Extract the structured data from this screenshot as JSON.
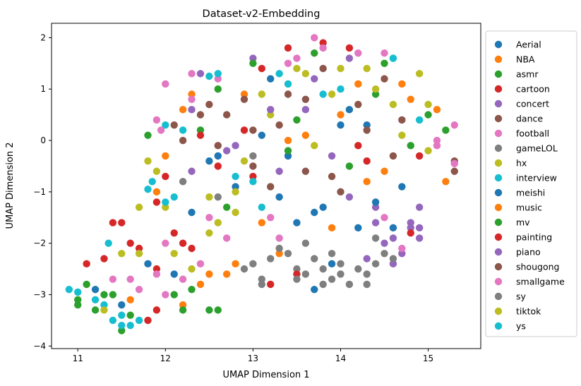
{
  "chart_data": {
    "type": "scatter",
    "title": "Dataset-v2-Embedding",
    "xlabel": "UMAP Dimension 1",
    "ylabel": "UMAP Dimension 2",
    "xlim": [
      10.7,
      15.6
    ],
    "ylim": [
      -4.05,
      2.28
    ],
    "xticks": [
      11,
      12,
      13,
      14,
      15
    ],
    "yticks": [
      -4,
      -3,
      -2,
      -1,
      0,
      1,
      2
    ],
    "grid": false,
    "legend_position": "outside-right",
    "series": [
      {
        "name": "Aerial",
        "color": "#1f77b4",
        "points": [
          [
            11.2,
            -2.9
          ],
          [
            11.5,
            -3.2
          ],
          [
            12.1,
            -2.6
          ],
          [
            12.8,
            -0.9
          ],
          [
            13.4,
            -0.3
          ],
          [
            14.1,
            0.6
          ],
          [
            13.9,
            -2.4
          ],
          [
            14.6,
            -1.7
          ],
          [
            13.2,
            1.2
          ],
          [
            12.5,
            -0.4
          ],
          [
            14.3,
            0.3
          ],
          [
            13.7,
            -1.4
          ]
        ]
      },
      {
        "name": "NBA",
        "color": "#ff7f0e",
        "points": [
          [
            12.4,
            -2.8
          ],
          [
            12.7,
            -2.6
          ],
          [
            11.9,
            -1.0
          ],
          [
            12.3,
            0.9
          ],
          [
            13.1,
            -1.6
          ],
          [
            14.5,
            -0.6
          ],
          [
            14.8,
            0.8
          ],
          [
            15.2,
            -0.8
          ],
          [
            13.6,
            0.1
          ],
          [
            12.0,
            -0.3
          ],
          [
            14.2,
            1.1
          ],
          [
            13.3,
            -2.2
          ]
        ]
      },
      {
        "name": "asmr",
        "color": "#2ca02c",
        "points": [
          [
            11.0,
            -3.1
          ],
          [
            11.2,
            -3.3
          ],
          [
            11.4,
            -3.0
          ],
          [
            11.1,
            -2.8
          ],
          [
            11.6,
            -3.4
          ],
          [
            12.1,
            -3.0
          ],
          [
            12.3,
            -2.9
          ],
          [
            12.5,
            -3.3
          ],
          [
            11.8,
            0.1
          ],
          [
            12.6,
            1.0
          ],
          [
            13.5,
            0.4
          ],
          [
            14.1,
            -0.5
          ],
          [
            15.0,
            0.5
          ],
          [
            14.5,
            1.5
          ]
        ]
      },
      {
        "name": "cartoon",
        "color": "#d62728",
        "points": [
          [
            11.5,
            -1.6
          ],
          [
            11.7,
            -2.1
          ],
          [
            11.9,
            -2.5
          ],
          [
            11.3,
            -2.3
          ],
          [
            11.8,
            -3.5
          ],
          [
            12.2,
            -2.0
          ],
          [
            12.0,
            -0.7
          ],
          [
            12.6,
            -0.5
          ],
          [
            13.1,
            1.4
          ],
          [
            13.8,
            1.9
          ],
          [
            14.2,
            -0.1
          ],
          [
            13.2,
            -2.8
          ],
          [
            14.9,
            -0.3
          ],
          [
            12.9,
            0.2
          ]
        ]
      },
      {
        "name": "concert",
        "color": "#9467bd",
        "points": [
          [
            12.3,
            -0.6
          ],
          [
            12.8,
            -0.1
          ],
          [
            13.3,
            -0.6
          ],
          [
            13.9,
            -0.3
          ],
          [
            14.4,
            -1.3
          ],
          [
            14.8,
            -1.7
          ],
          [
            14.9,
            -1.9
          ],
          [
            14.6,
            -2.4
          ],
          [
            13.0,
            1.6
          ],
          [
            14.1,
            1.6
          ],
          [
            12.4,
            1.3
          ],
          [
            13.6,
            0.6
          ]
        ]
      },
      {
        "name": "dance",
        "color": "#8c564b",
        "points": [
          [
            12.2,
            0.0
          ],
          [
            12.7,
            0.5
          ],
          [
            13.0,
            0.2
          ],
          [
            13.4,
            0.9
          ],
          [
            13.8,
            1.4
          ],
          [
            14.3,
            0.2
          ],
          [
            14.7,
            0.4
          ],
          [
            15.3,
            -0.6
          ],
          [
            13.2,
            -0.9
          ],
          [
            13.6,
            -0.6
          ],
          [
            12.5,
            0.7
          ],
          [
            14.0,
            -1.0
          ]
        ]
      },
      {
        "name": "football",
        "color": "#e377c2",
        "points": [
          [
            11.6,
            -2.7
          ],
          [
            11.9,
            -2.6
          ],
          [
            12.0,
            -2.0
          ],
          [
            12.4,
            -2.4
          ],
          [
            12.0,
            1.1
          ],
          [
            11.9,
            0.4
          ],
          [
            12.3,
            1.3
          ],
          [
            13.5,
            1.6
          ],
          [
            13.7,
            2.0
          ],
          [
            14.2,
            1.7
          ],
          [
            15.1,
            0.0
          ],
          [
            15.3,
            0.3
          ],
          [
            14.5,
            -1.5
          ],
          [
            13.2,
            -1.5
          ],
          [
            12.7,
            -1.9
          ]
        ]
      },
      {
        "name": "gameLOL",
        "color": "#7f7f7f",
        "points": [
          [
            12.9,
            -2.5
          ],
          [
            13.1,
            -2.7
          ],
          [
            13.3,
            -2.1
          ],
          [
            13.5,
            -2.5
          ],
          [
            13.7,
            -2.3
          ],
          [
            13.9,
            -2.7
          ],
          [
            14.1,
            -2.8
          ],
          [
            14.3,
            -2.6
          ],
          [
            14.5,
            -2.2
          ],
          [
            13.6,
            -2.0
          ],
          [
            14.0,
            -2.4
          ],
          [
            13.8,
            -2.8
          ],
          [
            14.4,
            -1.9
          ],
          [
            12.2,
            -0.8
          ],
          [
            13.0,
            -0.3
          ]
        ]
      },
      {
        "name": "hx",
        "color": "#bcbd22",
        "points": [
          [
            11.5,
            -2.2
          ],
          [
            11.7,
            -1.3
          ],
          [
            11.9,
            -0.6
          ],
          [
            12.5,
            -1.1
          ],
          [
            12.6,
            -1.6
          ],
          [
            12.8,
            -1.0
          ],
          [
            13.2,
            0.5
          ],
          [
            13.5,
            1.4
          ],
          [
            14.3,
            1.4
          ],
          [
            14.9,
            1.3
          ],
          [
            15.0,
            -0.2
          ],
          [
            14.6,
            0.7
          ],
          [
            12.1,
            -2.2
          ],
          [
            13.9,
            0.9
          ]
        ]
      },
      {
        "name": "interview",
        "color": "#17becf",
        "points": [
          [
            11.3,
            -3.2
          ],
          [
            11.4,
            -3.5
          ],
          [
            11.5,
            -3.4
          ],
          [
            11.6,
            -3.6
          ],
          [
            11.8,
            -0.95
          ],
          [
            12.1,
            -1.1
          ],
          [
            12.0,
            0.3
          ],
          [
            12.5,
            1.25
          ],
          [
            13.4,
            1.1
          ],
          [
            13.8,
            0.9
          ],
          [
            14.6,
            1.6
          ],
          [
            14.9,
            0.4
          ],
          [
            12.8,
            -0.7
          ],
          [
            13.1,
            -1.3
          ]
        ]
      },
      {
        "name": "meishi",
        "color": "#1f77b4",
        "points": [
          [
            11.8,
            -2.4
          ],
          [
            12.3,
            -1.4
          ],
          [
            12.6,
            -0.3
          ],
          [
            13.3,
            -1.1
          ],
          [
            13.5,
            -1.6
          ],
          [
            13.8,
            -1.3
          ],
          [
            14.2,
            -1.7
          ],
          [
            14.4,
            -1.2
          ],
          [
            14.7,
            -0.9
          ],
          [
            13.7,
            -2.9
          ],
          [
            14.0,
            0.3
          ],
          [
            13.1,
            0.1
          ]
        ]
      },
      {
        "name": "music",
        "color": "#ff7f0e",
        "points": [
          [
            11.6,
            -3.1
          ],
          [
            12.2,
            -3.2
          ],
          [
            12.5,
            -2.6
          ],
          [
            12.8,
            -2.4
          ],
          [
            12.2,
            0.6
          ],
          [
            12.9,
            0.9
          ],
          [
            13.4,
            0.0
          ],
          [
            14.0,
            0.5
          ],
          [
            14.7,
            1.1
          ],
          [
            15.1,
            0.6
          ],
          [
            14.3,
            -0.8
          ],
          [
            13.9,
            -1.7
          ]
        ]
      },
      {
        "name": "mv",
        "color": "#2ca02c",
        "points": [
          [
            11.0,
            -3.2
          ],
          [
            11.3,
            -3.0
          ],
          [
            11.5,
            -3.7
          ],
          [
            12.2,
            -3.3
          ],
          [
            12.6,
            -3.3
          ],
          [
            12.4,
            0.2
          ],
          [
            13.0,
            1.5
          ],
          [
            13.7,
            1.7
          ],
          [
            14.4,
            0.9
          ],
          [
            14.8,
            -0.1
          ],
          [
            15.2,
            0.2
          ],
          [
            13.4,
            -0.2
          ],
          [
            12.7,
            -1.3
          ]
        ]
      },
      {
        "name": "painting",
        "color": "#d62728",
        "points": [
          [
            11.1,
            -2.4
          ],
          [
            11.4,
            -1.6
          ],
          [
            11.6,
            -2.0
          ],
          [
            11.9,
            -3.3
          ],
          [
            12.1,
            -1.8
          ],
          [
            12.3,
            -2.1
          ],
          [
            11.9,
            -1.2
          ],
          [
            12.4,
            0.1
          ],
          [
            13.0,
            -0.7
          ],
          [
            13.4,
            1.8
          ],
          [
            14.1,
            1.8
          ],
          [
            14.3,
            -0.4
          ],
          [
            14.8,
            -1.8
          ],
          [
            13.5,
            -2.6
          ]
        ]
      },
      {
        "name": "piano",
        "color": "#9467bd",
        "points": [
          [
            14.4,
            -1.6
          ],
          [
            14.6,
            -1.9
          ],
          [
            14.7,
            -2.2
          ],
          [
            14.8,
            -1.6
          ],
          [
            14.9,
            -1.7
          ],
          [
            14.5,
            -2.0
          ],
          [
            14.3,
            -2.3
          ],
          [
            14.1,
            -1.1
          ],
          [
            12.7,
            -0.2
          ],
          [
            13.2,
            0.6
          ],
          [
            13.7,
            1.2
          ],
          [
            12.3,
            0.6
          ],
          [
            14.9,
            -1.3
          ]
        ]
      },
      {
        "name": "shougong",
        "color": "#8c564b",
        "points": [
          [
            12.1,
            0.3
          ],
          [
            12.6,
            -0.1
          ],
          [
            12.9,
            0.8
          ],
          [
            13.3,
            0.3
          ],
          [
            13.6,
            0.8
          ],
          [
            14.2,
            0.7
          ],
          [
            14.6,
            -0.3
          ],
          [
            15.3,
            -0.4
          ],
          [
            13.0,
            -0.5
          ],
          [
            13.9,
            -0.7
          ],
          [
            12.4,
            0.5
          ],
          [
            14.5,
            1.2
          ]
        ]
      },
      {
        "name": "smallgame",
        "color": "#e377c2",
        "points": [
          [
            11.4,
            -2.7
          ],
          [
            11.7,
            -2.9
          ],
          [
            12.0,
            -3.0
          ],
          [
            12.2,
            -2.7
          ],
          [
            11.95,
            0.2
          ],
          [
            12.3,
            0.8
          ],
          [
            12.6,
            1.2
          ],
          [
            13.4,
            1.5
          ],
          [
            13.8,
            1.8
          ],
          [
            14.5,
            1.7
          ],
          [
            15.1,
            -0.1
          ],
          [
            15.3,
            -0.45
          ],
          [
            14.7,
            -2.1
          ],
          [
            13.3,
            -1.9
          ],
          [
            12.5,
            -1.5
          ]
        ]
      },
      {
        "name": "sy",
        "color": "#7f7f7f",
        "points": [
          [
            13.0,
            -2.4
          ],
          [
            13.2,
            -2.3
          ],
          [
            13.4,
            -2.2
          ],
          [
            13.6,
            -2.6
          ],
          [
            13.8,
            -2.5
          ],
          [
            14.0,
            -2.6
          ],
          [
            14.2,
            -2.5
          ],
          [
            14.4,
            -2.4
          ],
          [
            14.6,
            -2.3
          ],
          [
            13.5,
            -2.7
          ],
          [
            13.9,
            -2.2
          ],
          [
            14.3,
            -2.8
          ],
          [
            13.1,
            -2.8
          ],
          [
            12.6,
            -1.1
          ]
        ]
      },
      {
        "name": "tiktok",
        "color": "#bcbd22",
        "points": [
          [
            11.3,
            -3.3
          ],
          [
            11.7,
            -2.2
          ],
          [
            11.8,
            -0.4
          ],
          [
            12.0,
            -1.3
          ],
          [
            12.5,
            -1.8
          ],
          [
            12.8,
            -1.4
          ],
          [
            13.1,
            0.9
          ],
          [
            13.6,
            1.3
          ],
          [
            14.0,
            1.4
          ],
          [
            14.4,
            1.0
          ],
          [
            15.0,
            0.7
          ],
          [
            14.7,
            0.1
          ],
          [
            12.9,
            -0.4
          ],
          [
            13.7,
            -0.1
          ],
          [
            12.3,
            -2.5
          ]
        ]
      },
      {
        "name": "ys",
        "color": "#17becf",
        "points": [
          [
            10.9,
            -2.9
          ],
          [
            11.0,
            -2.95
          ],
          [
            11.2,
            -3.1
          ],
          [
            11.35,
            -2.0
          ],
          [
            11.5,
            -3.6
          ],
          [
            11.7,
            -3.5
          ],
          [
            11.85,
            -0.8
          ],
          [
            12.0,
            -1.2
          ],
          [
            12.2,
            0.2
          ],
          [
            12.6,
            1.3
          ],
          [
            13.3,
            1.3
          ],
          [
            14.0,
            1.0
          ],
          [
            14.6,
            1.6
          ],
          [
            13.0,
            -0.8
          ]
        ]
      }
    ]
  }
}
